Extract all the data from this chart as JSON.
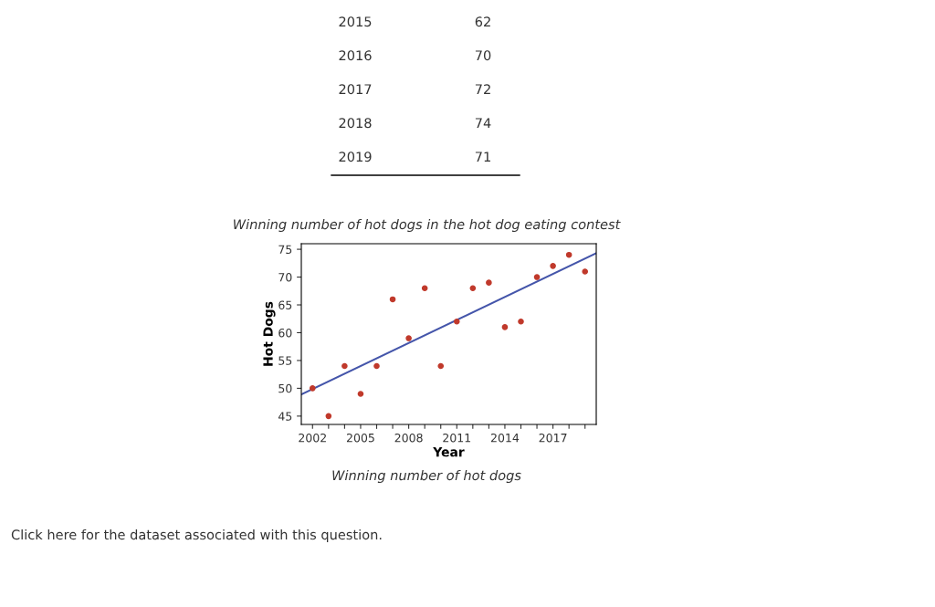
{
  "chart_data": {
    "type": "scatter",
    "title": "Winning number of hot dogs in the hot dog eating contest",
    "xlabel": "Year",
    "ylabel": "Hot Dogs",
    "annotations": [
      "2015",
      "62",
      "2016",
      "70",
      "2017",
      "72",
      "2018",
      "74",
      "2019",
      "71",
      "Winning number of hot dogs",
      "Click here for the dataset associated with this question."
    ],
    "series": [
      {
        "type": "scatter",
        "color": "#c0392b",
        "marker": "circle",
        "x": [
          2002,
          2003,
          2004,
          2005,
          2006,
          2007,
          2008,
          2009,
          2010,
          2011,
          2012,
          2013,
          2014,
          2015,
          2016,
          2017,
          2018,
          2019
        ],
        "values": [
          50,
          45,
          54,
          49,
          54,
          66,
          59,
          68,
          54,
          62,
          68,
          69,
          61,
          62,
          70,
          72,
          74,
          71
        ]
      },
      {
        "type": "line",
        "color": "#4455aa",
        "x": [
          2001.3,
          2019.7
        ],
        "values": [
          48.9,
          74.3
        ]
      }
    ],
    "grid": false,
    "legend": false,
    "xlim": [
      2001.3,
      2019.7
    ],
    "ylim": [
      43.5,
      76
    ],
    "xticks": [
      2002,
      {
        "value": 2003,
        "label": null
      },
      {
        "value": 2004,
        "label": null
      },
      2005,
      {
        "value": 2006,
        "label": null
      },
      {
        "value": 2007,
        "label": null
      },
      2008,
      {
        "value": 2009,
        "label": null
      },
      {
        "value": 2010,
        "label": null
      },
      2011,
      {
        "value": 2012,
        "label": null
      },
      {
        "value": 2013,
        "label": null
      },
      2014,
      {
        "value": 2015,
        "label": null
      },
      {
        "value": 2016,
        "label": null
      },
      2017,
      {
        "value": 2018,
        "label": null
      },
      {
        "value": 2019,
        "label": null
      }
    ],
    "yticks": [
      45,
      50,
      55,
      60,
      65,
      70,
      75
    ]
  }
}
